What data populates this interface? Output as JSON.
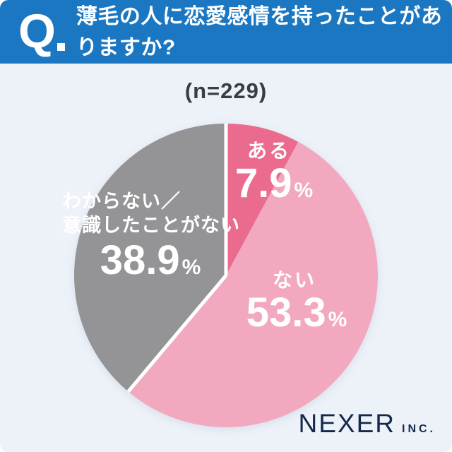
{
  "header": {
    "q_mark": "Q",
    "question": "薄毛の人に恋愛感情を持ったことがありますか?"
  },
  "sample_label": "(n=229)",
  "chart_data": {
    "type": "pie",
    "title": "薄毛の人に恋愛感情を持ったことがありますか?",
    "n": 229,
    "unit": "%",
    "percent_sign": "%",
    "start_angle_deg": 0,
    "direction": "clockwise",
    "legend_position": "inside-slices",
    "segments": [
      {
        "label": "ある",
        "value": 7.9,
        "display": "7.9",
        "color": "#eb6b8f"
      },
      {
        "label": "ない",
        "value": 53.3,
        "display": "53.3",
        "color": "#f2a9bf"
      },
      {
        "label": "わからない／意識したことがない",
        "label_line1": "わからない／",
        "label_line2": "意識したことがない",
        "value": 38.9,
        "display": "38.9",
        "color": "#949497",
        "white_separator": true
      }
    ]
  },
  "footer": {
    "brand": "NEXER",
    "brand_suffix": "INC."
  },
  "colors": {
    "header_bg": "#1b77c1",
    "background": "#edf2f9",
    "accent_dark_pink": "#eb6b8f",
    "accent_light_pink": "#f2a9bf",
    "accent_gray": "#949497",
    "separator_white": "#ffffff",
    "text_dark": "#383d44",
    "brand_navy": "#16294d",
    "label_text": "#ffffff"
  }
}
